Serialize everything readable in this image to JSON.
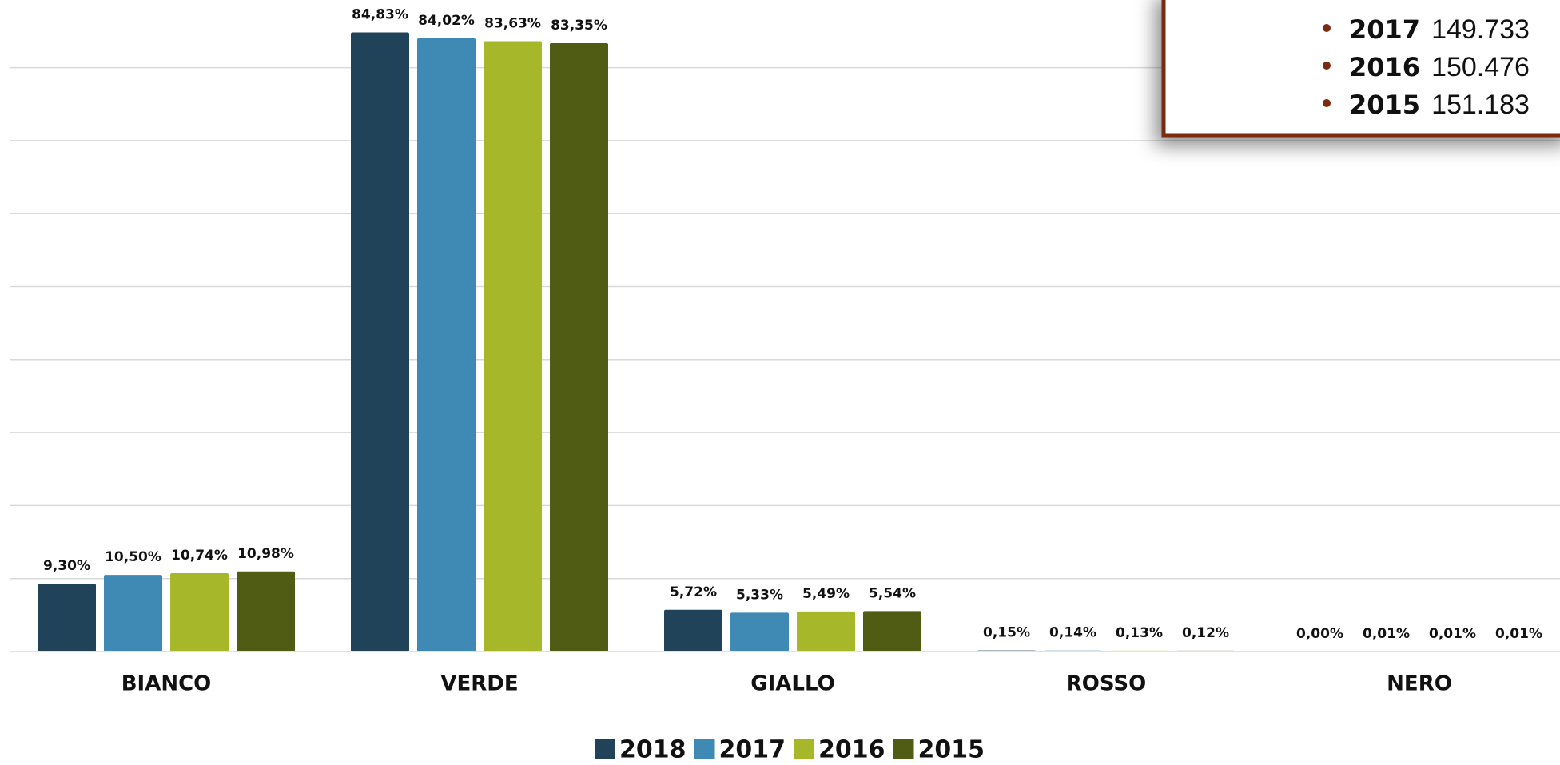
{
  "chart_data": {
    "type": "bar",
    "categories": [
      "BIANCO",
      "VERDE",
      "GIALLO",
      "ROSSO",
      "NERO"
    ],
    "series": [
      {
        "name": "2018",
        "color": "#21435a",
        "values": [
          9.3,
          84.83,
          5.72,
          0.15,
          0.0
        ],
        "value_labels": [
          "9,30%",
          "84,83%",
          "5,72%",
          "0,15%",
          "0,00%"
        ]
      },
      {
        "name": "2017",
        "color": "#3f89b5",
        "values": [
          10.5,
          84.02,
          5.33,
          0.14,
          0.01
        ],
        "value_labels": [
          "10,50%",
          "84,02%",
          "5,33%",
          "0,14%",
          "0,01%"
        ]
      },
      {
        "name": "2016",
        "color": "#a6b829",
        "values": [
          10.74,
          83.63,
          5.49,
          0.13,
          0.01
        ],
        "value_labels": [
          "10,74%",
          "83,63%",
          "5,49%",
          "0,13%",
          "0,01%"
        ]
      },
      {
        "name": "2015",
        "color": "#505b14",
        "values": [
          10.98,
          83.35,
          5.54,
          0.12,
          0.01
        ],
        "value_labels": [
          "10,98%",
          "83,35%",
          "5,54%",
          "0,12%",
          "0,01%"
        ]
      }
    ],
    "ylim": [
      0,
      90
    ],
    "yticks": [
      0,
      10,
      20,
      30,
      40,
      50,
      60,
      70,
      80
    ],
    "grid": true,
    "legend": "bottom"
  },
  "inset": {
    "items": [
      {
        "year": "2017",
        "value": "149.733"
      },
      {
        "year": "2016",
        "value": "150.476"
      },
      {
        "year": "2015",
        "value": "151.183"
      }
    ]
  }
}
